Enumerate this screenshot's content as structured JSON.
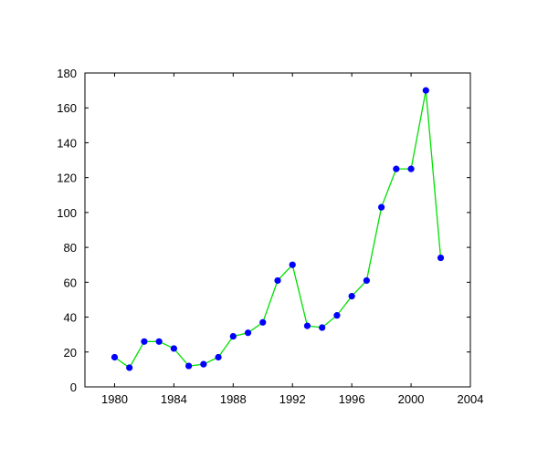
{
  "chart_data": {
    "type": "line",
    "title": "",
    "xlabel": "",
    "ylabel": "",
    "xlim": [
      1978,
      2004
    ],
    "ylim": [
      0,
      180
    ],
    "x_ticks": [
      1980,
      1984,
      1988,
      1992,
      1996,
      2000,
      2004
    ],
    "y_ticks": [
      0,
      20,
      40,
      60,
      80,
      100,
      120,
      140,
      160,
      180
    ],
    "grid": false,
    "line_color": "#00e000",
    "marker_color": "#0000ff",
    "series": [
      {
        "x": [
          1980,
          1981,
          1982,
          1983,
          1984,
          1985,
          1986,
          1987,
          1988,
          1989,
          1990,
          1991,
          1992,
          1993,
          1994,
          1995,
          1996,
          1997,
          1998,
          1999,
          2000,
          2001,
          2002
        ],
        "y": [
          17,
          11,
          26,
          26,
          22,
          12,
          13,
          17,
          29,
          31,
          37,
          61,
          70,
          35,
          34,
          41,
          52,
          61,
          103,
          125,
          125,
          170,
          74
        ]
      }
    ]
  }
}
